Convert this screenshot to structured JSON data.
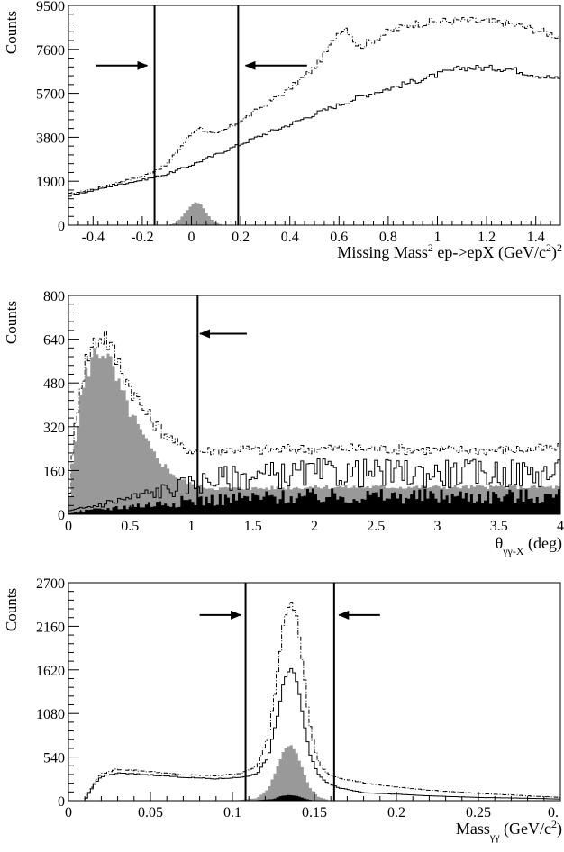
{
  "chart_data": [
    {
      "type": "histogram",
      "ylabel": "Counts",
      "xlabel_main": "Missing Mass",
      "xlabel_sup": "2",
      "xlabel_rest": " ep->epX (GeV/c",
      "xlabel_sup2": "2",
      "xlabel_end": ")",
      "xlabel_sup3": "2",
      "xlim": [
        -0.5,
        1.5
      ],
      "ylim": [
        0,
        9500
      ],
      "yticks": [
        0,
        1900,
        3800,
        5700,
        7600,
        9500
      ],
      "xticks": [
        -0.4,
        -0.2,
        0,
        0.2,
        0.4,
        0.6,
        0.8,
        1,
        1.2,
        1.4
      ],
      "cut_lines": [
        -0.15,
        0.19
      ],
      "arrows": [
        {
          "direction": "right",
          "x_from": -0.39,
          "x_to": -0.18,
          "y": 6900
        },
        {
          "direction": "left",
          "x_from": 0.47,
          "x_to": 0.22,
          "y": 6900
        }
      ],
      "series": [
        {
          "style": "dash-dot",
          "x": [
            -0.5,
            -0.4,
            -0.3,
            -0.2,
            -0.1,
            -0.05,
            0.0,
            0.03,
            0.07,
            0.1,
            0.2,
            0.3,
            0.4,
            0.5,
            0.55,
            0.6,
            0.63,
            0.65,
            0.68,
            0.72,
            0.8,
            0.9,
            1.0,
            1.1,
            1.2,
            1.3,
            1.4,
            1.5
          ],
          "y": [
            1350,
            1550,
            1850,
            2100,
            2600,
            3300,
            3950,
            4250,
            4000,
            3900,
            4500,
            5200,
            5900,
            6800,
            7500,
            8400,
            8550,
            8200,
            7700,
            7900,
            8350,
            8700,
            8800,
            8850,
            8800,
            8700,
            8450,
            8150
          ]
        },
        {
          "style": "solid",
          "x": [
            -0.5,
            -0.4,
            -0.3,
            -0.2,
            -0.1,
            0.0,
            0.1,
            0.2,
            0.3,
            0.4,
            0.5,
            0.6,
            0.7,
            0.8,
            0.9,
            1.0,
            1.1,
            1.2,
            1.3,
            1.4,
            1.5
          ],
          "y": [
            1250,
            1500,
            1750,
            1950,
            2200,
            2600,
            3050,
            3500,
            3950,
            4350,
            4800,
            5200,
            5600,
            5900,
            6200,
            6500,
            6800,
            6800,
            6750,
            6500,
            6300
          ]
        },
        {
          "style": "filled-gray",
          "x": [
            -0.1,
            -0.06,
            -0.03,
            0.0,
            0.02,
            0.04,
            0.06,
            0.09,
            0.13
          ],
          "y": [
            0,
            100,
            500,
            850,
            1000,
            900,
            550,
            150,
            0
          ]
        }
      ]
    },
    {
      "type": "histogram",
      "ylabel": "Counts",
      "xlabel_theta": "θ",
      "xlabel_sub": "γγ-X",
      "xlabel_unit": " (deg)",
      "xlim": [
        0,
        4
      ],
      "ylim": [
        0,
        800
      ],
      "yticks": [
        0,
        160,
        320,
        480,
        640,
        800
      ],
      "xticks": [
        0,
        0.5,
        1,
        1.5,
        2,
        2.5,
        3,
        3.5,
        4
      ],
      "cut_lines": [
        1.05
      ],
      "arrows": [
        {
          "direction": "left",
          "x_from": 1.45,
          "x_to": 1.07,
          "y": 660
        }
      ],
      "series": [
        {
          "style": "dash-dot",
          "x": [
            0,
            0.05,
            0.1,
            0.15,
            0.2,
            0.25,
            0.3,
            0.35,
            0.4,
            0.5,
            0.6,
            0.7,
            0.8,
            0.9,
            1.0,
            1.1,
            1.2,
            1.3,
            1.4,
            1.5,
            2,
            2.5,
            3,
            3.5,
            4
          ],
          "y": [
            20,
            300,
            480,
            570,
            620,
            650,
            660,
            600,
            560,
            470,
            390,
            330,
            290,
            250,
            235,
            230,
            235,
            235,
            240,
            235,
            240,
            240,
            235,
            235,
            240
          ]
        },
        {
          "style": "filled-gray",
          "x": [
            0,
            0.05,
            0.1,
            0.15,
            0.2,
            0.25,
            0.3,
            0.35,
            0.4,
            0.5,
            0.6,
            0.7,
            0.8,
            0.9,
            1.0,
            1.1,
            1.2,
            1.5,
            2,
            2.5,
            3,
            3.5,
            4
          ],
          "y": [
            20,
            250,
            420,
            520,
            580,
            600,
            600,
            540,
            480,
            380,
            290,
            220,
            170,
            130,
            110,
            100,
            95,
            95,
            100,
            100,
            100,
            100,
            100
          ]
        },
        {
          "style": "solid",
          "x": [
            0,
            0.2,
            0.4,
            0.6,
            0.8,
            1.0,
            1.2,
            1.5,
            1.8,
            2.0,
            2.5,
            3,
            3.5,
            4
          ],
          "y": [
            10,
            30,
            50,
            70,
            90,
            110,
            130,
            140,
            145,
            150,
            150,
            150,
            150,
            150
          ]
        },
        {
          "style": "filled-black",
          "x": [
            0,
            0.5,
            1,
            1.5,
            2,
            2.5,
            3,
            3.5,
            4
          ],
          "y": [
            5,
            30,
            50,
            60,
            65,
            65,
            65,
            65,
            65
          ]
        }
      ]
    },
    {
      "type": "histogram",
      "ylabel": "Counts",
      "xlabel_main": "Mass",
      "xlabel_sub": "γγ",
      "xlabel_rest": " (GeV/c",
      "xlabel_sup": "2",
      "xlabel_end": ")",
      "xlim": [
        0,
        0.3
      ],
      "ylim": [
        0,
        2700
      ],
      "yticks": [
        0,
        540,
        1080,
        1620,
        2160,
        2700
      ],
      "xticks": [
        0,
        0.05,
        0.1,
        0.15,
        0.2,
        0.25
      ],
      "xtick_last": "0.",
      "cut_lines": [
        0.108,
        0.162
      ],
      "arrows": [
        {
          "direction": "right",
          "x_from": 0.08,
          "x_to": 0.105,
          "y": 2300
        },
        {
          "direction": "left",
          "x_from": 0.19,
          "x_to": 0.165,
          "y": 2300
        }
      ],
      "series": [
        {
          "style": "dash-dot",
          "x": [
            0.01,
            0.015,
            0.02,
            0.03,
            0.05,
            0.07,
            0.09,
            0.105,
            0.115,
            0.122,
            0.127,
            0.131,
            0.135,
            0.139,
            0.143,
            0.147,
            0.152,
            0.158,
            0.165,
            0.18,
            0.2,
            0.22,
            0.25,
            0.28,
            0.3
          ],
          "y": [
            0,
            200,
            330,
            390,
            360,
            320,
            310,
            340,
            420,
            800,
            1500,
            2200,
            2500,
            2350,
            1700,
            950,
            500,
            330,
            280,
            220,
            170,
            130,
            90,
            60,
            40
          ]
        },
        {
          "style": "solid",
          "x": [
            0.01,
            0.015,
            0.02,
            0.03,
            0.05,
            0.07,
            0.09,
            0.105,
            0.115,
            0.122,
            0.127,
            0.131,
            0.135,
            0.139,
            0.143,
            0.147,
            0.152,
            0.158,
            0.165,
            0.18,
            0.2,
            0.22,
            0.25,
            0.28,
            0.3
          ],
          "y": [
            0,
            180,
            300,
            340,
            320,
            290,
            270,
            290,
            330,
            550,
            1000,
            1450,
            1650,
            1500,
            1050,
            600,
            330,
            220,
            160,
            100,
            80,
            60,
            40,
            30,
            20
          ]
        },
        {
          "style": "filled-gray",
          "x": [
            0.1,
            0.115,
            0.122,
            0.127,
            0.131,
            0.135,
            0.139,
            0.143,
            0.147,
            0.152,
            0.16
          ],
          "y": [
            0,
            30,
            150,
            400,
            620,
            700,
            600,
            380,
            170,
            50,
            0
          ]
        },
        {
          "style": "filled-black",
          "x": [
            0.11,
            0.125,
            0.13,
            0.135,
            0.14,
            0.145,
            0.15
          ],
          "y": [
            0,
            20,
            60,
            70,
            55,
            20,
            0
          ]
        }
      ]
    }
  ]
}
